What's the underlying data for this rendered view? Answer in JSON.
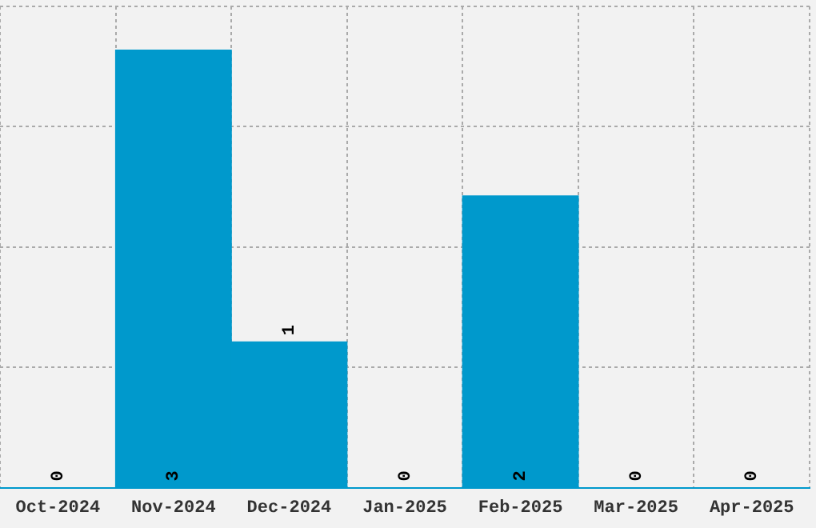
{
  "chart_data": {
    "type": "bar",
    "categories": [
      "Oct-2024",
      "Nov-2024",
      "Dec-2024",
      "Jan-2025",
      "Feb-2025",
      "Mar-2025",
      "Apr-2025"
    ],
    "values": [
      0,
      3,
      1,
      0,
      2,
      0,
      0
    ],
    "color": "#0099cc",
    "data_labels": true,
    "ylim": [
      0,
      3.3
    ],
    "yticks": [
      {
        "value": 0,
        "label": null
      },
      {
        "value": 0.825,
        "label": null
      },
      {
        "value": 1.65,
        "label": null
      },
      {
        "value": 2.475,
        "label": null
      },
      {
        "value": 3.3,
        "label": null
      }
    ],
    "grid": true,
    "tick_labels": "x"
  }
}
